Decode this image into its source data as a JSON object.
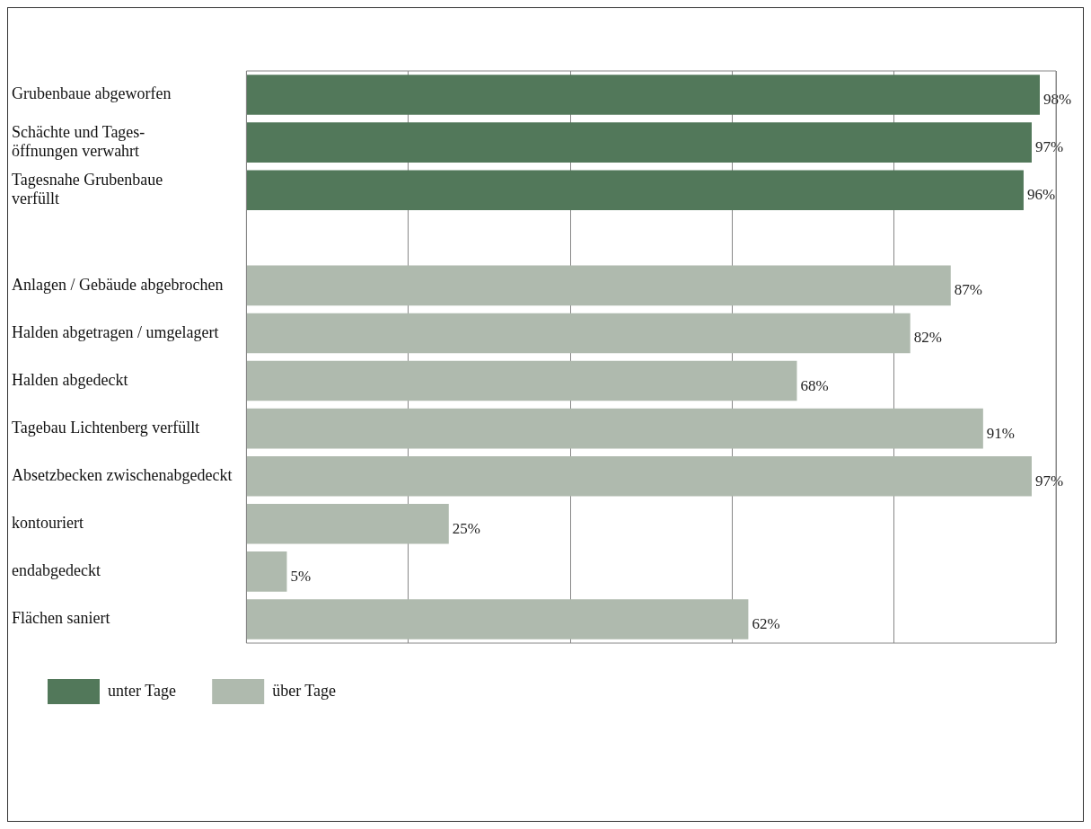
{
  "chart_data": {
    "type": "bar",
    "orientation": "horizontal",
    "stacked": true,
    "categories": [
      "Grubenbaue abgeworfen",
      "Schächte und Tages-\nöffnungen verwahrt",
      "Tagesnahe Grubenbaue\nverfüllt",
      null,
      "Anlagen / Gebäude abgebrochen",
      "Halden abgetragen / umgelagert",
      "Halden abgedeckt",
      "Tagebau Lichtenberg verfüllt",
      "Absetzbecken zwischenabgedeckt",
      "kontouriert",
      "endabgedeckt",
      "Flächen saniert"
    ],
    "series": [
      {
        "name": "unter Tage",
        "color": "#52785a",
        "values": [
          98,
          97,
          96,
          null,
          null,
          null,
          null,
          null,
          null,
          null,
          null,
          null
        ],
        "value_labels": [
          "98%",
          "97%",
          "96%",
          null,
          null,
          null,
          null,
          null,
          null,
          null,
          null,
          null
        ]
      },
      {
        "name": "über Tage",
        "color": "#afbaae",
        "values": [
          null,
          null,
          null,
          null,
          87,
          82,
          68,
          91,
          97,
          25,
          5,
          62
        ],
        "value_labels": [
          null,
          null,
          null,
          null,
          "87%",
          "82%",
          "68%",
          "91%",
          "97%",
          "25%",
          "5%",
          "62%"
        ]
      }
    ],
    "xlim": [
      0,
      100
    ],
    "xticks": [
      {
        "value": 0,
        "label": null
      },
      {
        "value": 20,
        "label": null
      },
      {
        "value": 40,
        "label": null
      },
      {
        "value": 60,
        "label": null
      },
      {
        "value": 80,
        "label": null
      },
      {
        "value": 100,
        "label": null
      }
    ],
    "tick_labels": "y",
    "grid": "x",
    "legend": "bottom"
  }
}
